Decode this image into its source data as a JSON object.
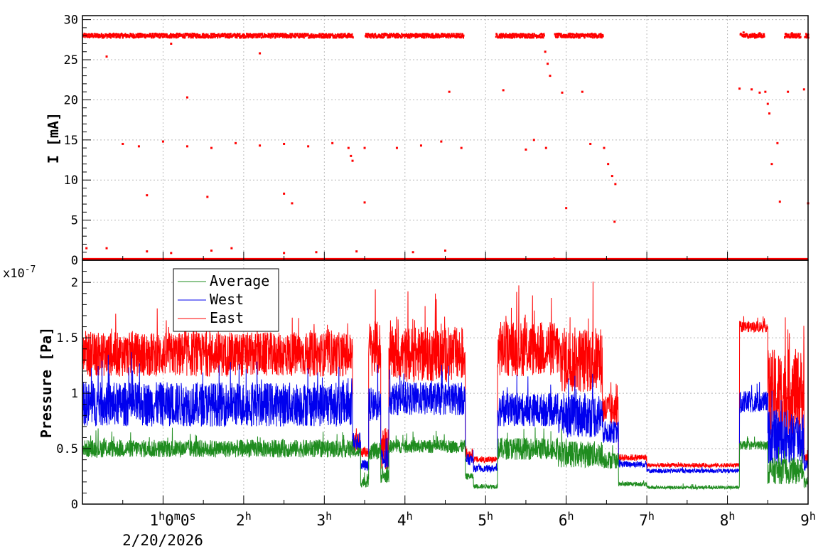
{
  "chart_data": [
    {
      "type": "scatter",
      "ylabel": "I [mA]",
      "ylim": [
        0,
        30.5
      ],
      "yticks": [
        "0",
        "5",
        "10",
        "15",
        "20",
        "25",
        "30"
      ],
      "xlim_hours": [
        0,
        9
      ],
      "x_unit": "hours",
      "grid": true,
      "series": [
        {
          "color": "#ff0000",
          "points": [
            [
              0.05,
              28.0
            ],
            [
              0.3,
              28.1
            ],
            [
              0.6,
              28.0
            ],
            [
              0.9,
              28.2
            ],
            [
              1.2,
              28.0
            ],
            [
              1.5,
              28.1
            ],
            [
              1.8,
              28.0
            ],
            [
              2.1,
              28.1
            ],
            [
              2.4,
              28.0
            ],
            [
              2.7,
              28.2
            ],
            [
              3.0,
              28.0
            ],
            [
              3.3,
              27.9
            ],
            [
              3.6,
              28.0
            ],
            [
              3.9,
              28.1
            ],
            [
              4.2,
              28.0
            ],
            [
              4.6,
              28.0
            ],
            [
              5.2,
              27.9
            ],
            [
              5.5,
              28.0
            ],
            [
              5.7,
              27.8
            ],
            [
              5.9,
              28.1
            ],
            [
              6.2,
              28.0
            ],
            [
              6.4,
              28.0
            ],
            [
              8.2,
              28.4
            ],
            [
              8.4,
              28.3
            ],
            [
              8.8,
              28.3
            ],
            [
              9.0,
              28.1
            ],
            [
              5.74,
              26.0
            ],
            [
              5.77,
              24.5
            ],
            [
              5.8,
              23.0
            ],
            [
              6.47,
              14.0
            ],
            [
              6.52,
              12.0
            ],
            [
              6.57,
              10.5
            ],
            [
              6.61,
              9.5
            ],
            [
              3.3,
              14.0
            ],
            [
              3.33,
              13.0
            ],
            [
              3.35,
              12.4
            ],
            [
              8.47,
              21.0
            ],
            [
              8.5,
              19.5
            ],
            [
              8.52,
              18.3
            ],
            [
              0.3,
              25.4
            ],
            [
              1.1,
              27.0
            ],
            [
              1.3,
              20.3
            ],
            [
              2.2,
              25.8
            ],
            [
              4.55,
              21.0
            ],
            [
              5.22,
              21.2
            ],
            [
              5.95,
              20.9
            ],
            [
              6.2,
              21.0
            ],
            [
              8.15,
              21.4
            ],
            [
              8.3,
              21.3
            ],
            [
              8.75,
              21.0
            ],
            [
              8.95,
              21.3
            ],
            [
              8.4,
              20.9
            ],
            [
              0.5,
              14.5
            ],
            [
              0.7,
              14.2
            ],
            [
              1.0,
              14.8
            ],
            [
              1.3,
              14.2
            ],
            [
              1.6,
              14.0
            ],
            [
              1.9,
              14.6
            ],
            [
              2.2,
              14.3
            ],
            [
              2.5,
              14.5
            ],
            [
              2.8,
              14.2
            ],
            [
              3.1,
              14.6
            ],
            [
              3.5,
              14.0
            ],
            [
              3.9,
              14.0
            ],
            [
              4.2,
              14.3
            ],
            [
              4.45,
              14.8
            ],
            [
              4.7,
              14.0
            ],
            [
              5.5,
              13.8
            ],
            [
              5.6,
              15.0
            ],
            [
              5.75,
              14.0
            ],
            [
              6.3,
              14.5
            ],
            [
              8.55,
              12.0
            ],
            [
              8.62,
              14.6
            ],
            [
              0.8,
              8.1
            ],
            [
              1.55,
              7.9
            ],
            [
              2.5,
              8.3
            ],
            [
              2.6,
              7.1
            ],
            [
              3.5,
              7.2
            ],
            [
              6.0,
              6.5
            ],
            [
              8.65,
              7.3
            ],
            [
              9.0,
              7.1
            ],
            [
              6.6,
              4.8
            ],
            [
              0.05,
              1.5
            ],
            [
              0.3,
              1.5
            ],
            [
              0.8,
              1.1
            ],
            [
              1.1,
              0.9
            ],
            [
              1.6,
              1.2
            ],
            [
              1.85,
              1.5
            ],
            [
              2.5,
              0.9
            ],
            [
              2.9,
              1.0
            ],
            [
              3.4,
              1.1
            ],
            [
              4.1,
              1.0
            ],
            [
              4.5,
              1.2
            ],
            [
              5.85,
              0.2
            ]
          ],
          "baseline": 0.05
        }
      ]
    },
    {
      "type": "line",
      "ylabel": "Pressure [Pa]",
      "y_exponent": "x10^-7",
      "y_exponent_base": "x10",
      "y_exponent_power": "-7",
      "ylim": [
        0,
        2.2
      ],
      "yticks": [
        "0",
        "0.5",
        "1",
        "1.5",
        "2"
      ],
      "xlim_hours": [
        0,
        9
      ],
      "x_unit": "hours",
      "grid": true,
      "legend": "top-left",
      "series": [
        {
          "name": "Average",
          "color": "#1f8c1f",
          "segments": [
            [
              0,
              0.5,
              0.08
            ],
            [
              3.35,
              0.47,
              0.05
            ],
            [
              3.45,
              0.2,
              0.05
            ],
            [
              3.55,
              0.48,
              0.08
            ],
            [
              3.7,
              0.25,
              0.06
            ],
            [
              3.8,
              0.52,
              0.06
            ],
            [
              4.75,
              0.25,
              0.03
            ],
            [
              4.85,
              0.16,
              0.02
            ],
            [
              5.15,
              0.5,
              0.1
            ],
            [
              5.9,
              0.45,
              0.12
            ],
            [
              6.45,
              0.4,
              0.08
            ],
            [
              6.65,
              0.18,
              0.02
            ],
            [
              7.0,
              0.15,
              0.015
            ],
            [
              8.15,
              0.53,
              0.04
            ],
            [
              8.5,
              0.3,
              0.12
            ],
            [
              8.95,
              0.2,
              0.05
            ],
            [
              9.0,
              0.3,
              0.05
            ]
          ]
        },
        {
          "name": "West",
          "color": "#0000ee",
          "segments": [
            [
              0,
              0.9,
              0.2
            ],
            [
              3.35,
              0.55,
              0.1
            ],
            [
              3.45,
              0.35,
              0.05
            ],
            [
              3.55,
              0.9,
              0.15
            ],
            [
              3.7,
              0.4,
              0.1
            ],
            [
              3.8,
              0.95,
              0.15
            ],
            [
              4.75,
              0.4,
              0.05
            ],
            [
              4.85,
              0.32,
              0.03
            ],
            [
              5.15,
              0.85,
              0.15
            ],
            [
              5.9,
              0.8,
              0.2
            ],
            [
              6.45,
              0.65,
              0.1
            ],
            [
              6.65,
              0.36,
              0.03
            ],
            [
              7.0,
              0.3,
              0.02
            ],
            [
              8.15,
              0.92,
              0.1
            ],
            [
              8.5,
              0.6,
              0.25
            ],
            [
              8.95,
              0.35,
              0.05
            ],
            [
              9.0,
              0.7,
              0.1
            ]
          ]
        },
        {
          "name": "East",
          "color": "#ff0000",
          "segments": [
            [
              0,
              1.35,
              0.2
            ],
            [
              3.35,
              0.55,
              0.1
            ],
            [
              3.45,
              0.47,
              0.05
            ],
            [
              3.55,
              1.4,
              0.25
            ],
            [
              3.7,
              0.5,
              0.2
            ],
            [
              3.8,
              1.35,
              0.25
            ],
            [
              4.75,
              0.45,
              0.05
            ],
            [
              4.85,
              0.4,
              0.03
            ],
            [
              5.15,
              1.4,
              0.25
            ],
            [
              5.9,
              1.3,
              0.3
            ],
            [
              6.45,
              0.85,
              0.15
            ],
            [
              6.65,
              0.42,
              0.03
            ],
            [
              7.0,
              0.35,
              0.02
            ],
            [
              8.15,
              1.6,
              0.05
            ],
            [
              8.5,
              1.0,
              0.4
            ],
            [
              8.95,
              0.42,
              0.05
            ],
            [
              9.0,
              1.4,
              0.2
            ]
          ]
        }
      ]
    }
  ],
  "x_axis": {
    "tick_labels": [
      {
        "hour": 1,
        "base": "1",
        "sup": "h",
        "rest": "0",
        "sup2": "m",
        "rest2": "0",
        "sup3": "s"
      },
      {
        "hour": 2,
        "base": "2",
        "sup": "h"
      },
      {
        "hour": 3,
        "base": "3",
        "sup": "h"
      },
      {
        "hour": 4,
        "base": "4",
        "sup": "h"
      },
      {
        "hour": 5,
        "base": "5",
        "sup": "h"
      },
      {
        "hour": 6,
        "base": "6",
        "sup": "h"
      },
      {
        "hour": 7,
        "base": "7",
        "sup": "h"
      },
      {
        "hour": 8,
        "base": "8",
        "sup": "h"
      },
      {
        "hour": 9,
        "base": "9",
        "sup": "h"
      }
    ],
    "date_label": "2/20/2026"
  },
  "legend": {
    "items": [
      "Average",
      "West",
      "East"
    ]
  }
}
